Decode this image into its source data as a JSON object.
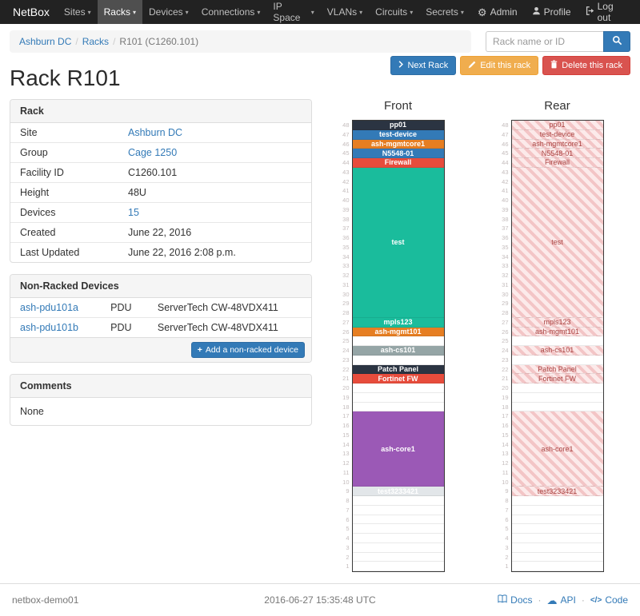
{
  "icons": {
    "gear": "⚙",
    "caret": "▾",
    "cloud": "☁",
    "code": "</>",
    "plus": "+"
  },
  "navbar": {
    "brand": "NetBox",
    "items": [
      {
        "label": "Sites"
      },
      {
        "label": "Racks",
        "active": true
      },
      {
        "label": "Devices"
      },
      {
        "label": "Connections"
      },
      {
        "label": "IP Space"
      },
      {
        "label": "VLANs"
      },
      {
        "label": "Circuits"
      },
      {
        "label": "Secrets"
      }
    ],
    "right": {
      "admin": "Admin",
      "profile": "Profile",
      "logout": "Log out"
    }
  },
  "breadcrumb": {
    "items": [
      {
        "label": "Ashburn DC",
        "link": true
      },
      {
        "label": "Racks",
        "link": true
      },
      {
        "label": "R101 (C1260.101)",
        "link": false
      }
    ]
  },
  "search": {
    "placeholder": "Rack name or ID"
  },
  "actions": {
    "next": "Next Rack",
    "edit": "Edit this rack",
    "delete": "Delete this rack"
  },
  "page_title": "Rack R101",
  "rack_panel": {
    "title": "Rack",
    "rows": [
      {
        "label": "Site",
        "value": "Ashburn DC",
        "link": true
      },
      {
        "label": "Group",
        "value": "Cage 1250",
        "link": true
      },
      {
        "label": "Facility ID",
        "value": "C1260.101",
        "link": false
      },
      {
        "label": "Height",
        "value": "48U",
        "link": false
      },
      {
        "label": "Devices",
        "value": "15",
        "link": true
      },
      {
        "label": "Created",
        "value": "June 22, 2016",
        "link": false
      },
      {
        "label": "Last Updated",
        "value": "June 22, 2016 2:08 p.m.",
        "link": false
      }
    ]
  },
  "non_racked": {
    "title": "Non-Racked Devices",
    "rows": [
      {
        "name": "ash-pdu101a",
        "type": "PDU",
        "model": "ServerTech CW-48VDX411"
      },
      {
        "name": "ash-pdu101b",
        "type": "PDU",
        "model": "ServerTech CW-48VDX411"
      }
    ],
    "add_label": "Add a non-racked device"
  },
  "comments": {
    "title": "Comments",
    "body": "None"
  },
  "elevations": {
    "front_title": "Front",
    "rear_title": "Rear",
    "units_total": 48,
    "rear": {
      "stripe_dark": "#f3c5c6",
      "stripe_light": "#fceaea",
      "label_color": "#a94442"
    },
    "devices": [
      {
        "name": "pp01",
        "top_u": 48,
        "u_height": 1,
        "color": "#2b3442"
      },
      {
        "name": "test-device",
        "top_u": 47,
        "u_height": 1,
        "color": "#337ab7"
      },
      {
        "name": "ash-mgmtcore1",
        "top_u": 46,
        "u_height": 1,
        "color": "#e67e22"
      },
      {
        "name": "N5548-01",
        "top_u": 45,
        "u_height": 1,
        "color": "#337ab7"
      },
      {
        "name": "Firewall",
        "top_u": 44,
        "u_height": 1,
        "color": "#e74c3c"
      },
      {
        "name": "test",
        "top_u": 43,
        "u_height": 16,
        "color": "#1abc9c"
      },
      {
        "name": "mpls123",
        "top_u": 27,
        "u_height": 1,
        "color": "#1abc9c"
      },
      {
        "name": "ash-mgmt101",
        "top_u": 26,
        "u_height": 1,
        "color": "#e67e22"
      },
      {
        "name": "ash-cs101",
        "top_u": 24,
        "u_height": 1,
        "color": "#95a5a6"
      },
      {
        "name": "Patch Panel",
        "top_u": 22,
        "u_height": 1,
        "color": "#2b3442"
      },
      {
        "name": "Fortinet FW",
        "top_u": 21,
        "u_height": 1,
        "color": "#e74c3c"
      },
      {
        "name": "ash-core1",
        "top_u": 17,
        "u_height": 8,
        "color": "#9b59b6"
      },
      {
        "name": "test3233421",
        "top_u": 9,
        "u_height": 1,
        "color": "#e2e6e9",
        "text_color": "#ffffff"
      }
    ]
  },
  "footer": {
    "hostname": "netbox-demo01",
    "timestamp": "2016-06-27 15:35:48 UTC",
    "docs": "Docs",
    "api": "API",
    "code": "Code"
  }
}
